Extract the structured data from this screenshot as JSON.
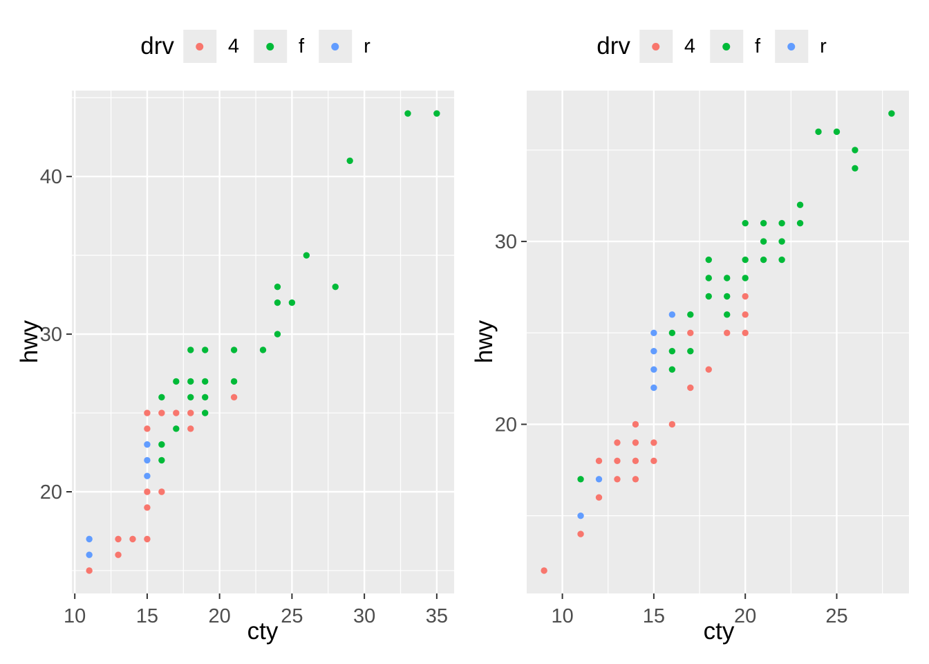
{
  "figure": {
    "background": "#FFFFFF"
  },
  "theme": {
    "panel_background": "#EBEBEB",
    "gridline_color": "#FFFFFF",
    "tick_label_color": "#4D4D4D",
    "tick_mark_color": "#333333",
    "axis_title_color": "#000000",
    "legend_key_background": "#EBEBEB",
    "point_radius": 4.7
  },
  "chart_data": [
    {
      "type": "scatter",
      "title": "",
      "xlabel": "cty",
      "ylabel": "hwy",
      "grid": true,
      "x_axis": {
        "limits": [
          9.8,
          36.2
        ],
        "major_ticks": [
          10,
          15,
          20,
          25,
          30,
          35
        ],
        "minor_gridlines": [
          12.5,
          17.5,
          22.5,
          27.5,
          32.5
        ]
      },
      "y_axis": {
        "limits": [
          13.55,
          45.45
        ],
        "major_ticks": [
          20,
          30,
          40
        ],
        "minor_gridlines": [
          15,
          25,
          35,
          45
        ]
      },
      "legend": {
        "title": "drv",
        "position": "top-center"
      },
      "series": [
        {
          "name": "4",
          "color": "#F8766D",
          "points": [
            [
              11,
              15
            ],
            [
              13,
              16
            ],
            [
              13,
              17
            ],
            [
              14,
              17
            ],
            [
              15,
              17
            ],
            [
              15,
              19
            ],
            [
              15,
              20
            ],
            [
              16,
              20
            ],
            [
              15,
              24
            ],
            [
              18,
              24
            ],
            [
              15,
              25
            ],
            [
              16,
              25
            ],
            [
              17,
              25
            ],
            [
              18,
              25
            ],
            [
              21,
              26
            ]
          ]
        },
        {
          "name": "f",
          "color": "#00BA38",
          "points": [
            [
              16,
              22
            ],
            [
              16,
              23
            ],
            [
              17,
              24
            ],
            [
              19,
              25
            ],
            [
              16,
              26
            ],
            [
              18,
              26
            ],
            [
              19,
              26
            ],
            [
              17,
              27
            ],
            [
              18,
              27
            ],
            [
              19,
              27
            ],
            [
              21,
              27
            ],
            [
              18,
              29
            ],
            [
              19,
              29
            ],
            [
              21,
              29
            ],
            [
              23,
              29
            ],
            [
              24,
              30
            ],
            [
              24,
              32
            ],
            [
              25,
              32
            ],
            [
              24,
              33
            ],
            [
              28,
              33
            ],
            [
              26,
              35
            ],
            [
              29,
              41
            ],
            [
              33,
              44
            ],
            [
              35,
              44
            ]
          ]
        },
        {
          "name": "r",
          "color": "#619CFF",
          "points": [
            [
              11,
              16
            ],
            [
              11,
              17
            ],
            [
              15,
              21
            ],
            [
              15,
              22
            ],
            [
              15,
              23
            ]
          ]
        }
      ]
    },
    {
      "type": "scatter",
      "title": "",
      "xlabel": "cty",
      "ylabel": "hwy",
      "grid": true,
      "x_axis": {
        "limits": [
          8.05,
          28.95
        ],
        "major_ticks": [
          10,
          15,
          20,
          25
        ],
        "minor_gridlines": [
          12.5,
          17.5,
          22.5,
          27.5
        ]
      },
      "y_axis": {
        "limits": [
          10.75,
          38.25
        ],
        "major_ticks": [
          20,
          30
        ],
        "minor_gridlines": [
          15,
          25,
          35
        ]
      },
      "legend": {
        "title": "drv",
        "position": "top-center"
      },
      "series": [
        {
          "name": "4",
          "color": "#F8766D",
          "points": [
            [
              9,
              12
            ],
            [
              11,
              14
            ],
            [
              12,
              16
            ],
            [
              13,
              17
            ],
            [
              14,
              17
            ],
            [
              12,
              18
            ],
            [
              13,
              18
            ],
            [
              14,
              18
            ],
            [
              15,
              18
            ],
            [
              13,
              19
            ],
            [
              14,
              19
            ],
            [
              15,
              19
            ],
            [
              14,
              20
            ],
            [
              16,
              20
            ],
            [
              17,
              22
            ],
            [
              18,
              23
            ],
            [
              17,
              25
            ],
            [
              19,
              25
            ],
            [
              20,
              25
            ],
            [
              20,
              26
            ],
            [
              20,
              27
            ]
          ]
        },
        {
          "name": "f",
          "color": "#00BA38",
          "points": [
            [
              11,
              17
            ],
            [
              16,
              23
            ],
            [
              16,
              24
            ],
            [
              17,
              24
            ],
            [
              16,
              25
            ],
            [
              17,
              26
            ],
            [
              19,
              26
            ],
            [
              18,
              27
            ],
            [
              19,
              27
            ],
            [
              18,
              28
            ],
            [
              19,
              28
            ],
            [
              20,
              28
            ],
            [
              18,
              29
            ],
            [
              20,
              29
            ],
            [
              21,
              29
            ],
            [
              22,
              29
            ],
            [
              21,
              30
            ],
            [
              22,
              30
            ],
            [
              20,
              31
            ],
            [
              21,
              31
            ],
            [
              22,
              31
            ],
            [
              23,
              31
            ],
            [
              23,
              32
            ],
            [
              26,
              34
            ],
            [
              26,
              35
            ],
            [
              24,
              36
            ],
            [
              25,
              36
            ],
            [
              28,
              37
            ]
          ]
        },
        {
          "name": "r",
          "color": "#619CFF",
          "points": [
            [
              11,
              15
            ],
            [
              12,
              17
            ],
            [
              15,
              22
            ],
            [
              15,
              23
            ],
            [
              15,
              24
            ],
            [
              15,
              25
            ],
            [
              16,
              26
            ]
          ]
        }
      ]
    }
  ]
}
